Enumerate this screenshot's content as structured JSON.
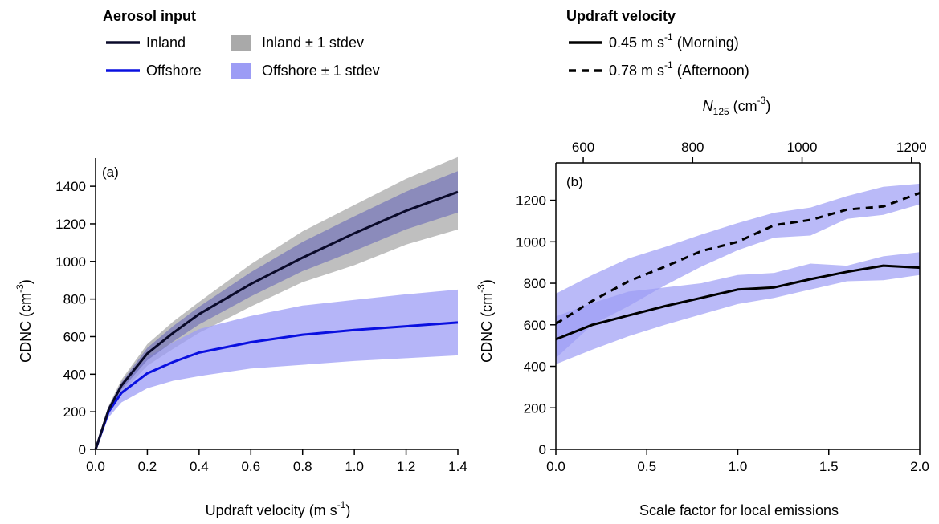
{
  "legend_aerosol": {
    "title": "Aerosol input",
    "inland": "Inland",
    "inland_band": "Inland ± 1 stdev",
    "offshore": "Offshore",
    "offshore_band": "Offshore ± 1 stdev"
  },
  "legend_updraft": {
    "title": "Updraft velocity",
    "morning_value": "0.45 m s",
    "morning_exp": "-1",
    "morning_suffix": " (Morning)",
    "afternoon_value": "0.78 m s",
    "afternoon_exp": "-1",
    "afternoon_suffix": " (Afternoon)"
  },
  "colors": {
    "inland": "#0a0a2a",
    "offshore": "#0a10e0",
    "inland_band": "#a9a9a9",
    "offshore_band": "#9c9cf5",
    "overlap_band": "#6f6fb8"
  },
  "chart_data": [
    {
      "type": "line",
      "panel_label": "(a)",
      "xlabel": "Updraft velocity (m s",
      "xlabel_exp": "-1",
      "xlabel_close": ")",
      "ylabel": "CDNC (cm",
      "ylabel_exp": "-3",
      "ylabel_close": ")",
      "xlim": [
        0,
        1.4
      ],
      "ylim": [
        0,
        1550
      ],
      "xticks": [
        0.0,
        0.2,
        0.4,
        0.6,
        0.8,
        1.0,
        1.2,
        1.4
      ],
      "xtick_labels": [
        "0.0",
        "0.2",
        "0.4",
        "0.6",
        "0.8",
        "1.0",
        "1.2",
        "1.4"
      ],
      "yticks": [
        0,
        200,
        400,
        600,
        800,
        1000,
        1200,
        1400
      ],
      "ytick_labels": [
        "0",
        "200",
        "400",
        "600",
        "800",
        "1000",
        "1200",
        "1400"
      ],
      "x": [
        0.0,
        0.05,
        0.1,
        0.2,
        0.3,
        0.4,
        0.6,
        0.8,
        1.0,
        1.2,
        1.4
      ],
      "series": [
        {
          "name": "Inland",
          "values": [
            0,
            210,
            340,
            510,
            620,
            720,
            880,
            1020,
            1150,
            1270,
            1370
          ],
          "lower": [
            0,
            185,
            300,
            445,
            535,
            620,
            760,
            890,
            980,
            1090,
            1170
          ],
          "upper": [
            0,
            230,
            370,
            560,
            680,
            785,
            985,
            1160,
            1300,
            1440,
            1555
          ],
          "band": "Inland ± 1 stdev"
        },
        {
          "name": "Offshore",
          "values": [
            0,
            200,
            300,
            405,
            465,
            515,
            570,
            610,
            635,
            655,
            675
          ],
          "lower": [
            0,
            170,
            250,
            325,
            365,
            390,
            430,
            450,
            470,
            485,
            500
          ],
          "upper": [
            0,
            225,
            340,
            490,
            570,
            640,
            710,
            765,
            795,
            825,
            850
          ],
          "band": "Offshore ± 1 stdev"
        }
      ]
    },
    {
      "type": "line",
      "panel_label": "(b)",
      "xlabel": "Scale factor for local emissions",
      "ylabel": "CDNC (cm",
      "ylabel_exp": "-3",
      "ylabel_close": ")",
      "top_axis_label": "125",
      "top_axis_symbol": "N",
      "top_axis_unit": " (cm",
      "top_axis_exp": "-3",
      "top_axis_close": ")",
      "xlim": [
        0,
        2.0
      ],
      "ylim": [
        0,
        1380
      ],
      "xticks": [
        0.0,
        0.5,
        1.0,
        1.5,
        2.0
      ],
      "xtick_labels": [
        "0.0",
        "0.5",
        "1.0",
        "1.5",
        "2.0"
      ],
      "yticks": [
        0,
        200,
        400,
        600,
        800,
        1000,
        1200
      ],
      "ytick_labels": [
        "0",
        "200",
        "400",
        "600",
        "800",
        "1000",
        "1200"
      ],
      "top_xlim": [
        550,
        1215
      ],
      "top_xticks": [
        600,
        800,
        1000,
        1200
      ],
      "top_xtick_labels": [
        "600",
        "800",
        "1000",
        "1200"
      ],
      "x": [
        0.0,
        0.2,
        0.4,
        0.6,
        0.8,
        1.0,
        1.2,
        1.4,
        1.6,
        1.8,
        2.0
      ],
      "series": [
        {
          "name": "0.45 m s-1 (Morning)",
          "style": "solid",
          "values": [
            530,
            600,
            645,
            690,
            730,
            770,
            780,
            820,
            855,
            885,
            875
          ],
          "lower": [
            410,
            480,
            545,
            600,
            650,
            700,
            730,
            770,
            810,
            815,
            840
          ],
          "upper": [
            640,
            705,
            760,
            780,
            800,
            840,
            850,
            895,
            885,
            930,
            950
          ]
        },
        {
          "name": "0.78 m s-1 (Afternoon)",
          "style": "dashed",
          "values": [
            605,
            715,
            810,
            880,
            955,
            1000,
            1080,
            1105,
            1155,
            1170,
            1235
          ],
          "lower": [
            440,
            600,
            690,
            790,
            880,
            960,
            1020,
            1030,
            1110,
            1130,
            1180
          ],
          "upper": [
            750,
            840,
            920,
            975,
            1035,
            1090,
            1140,
            1165,
            1220,
            1265,
            1280
          ]
        }
      ]
    }
  ]
}
